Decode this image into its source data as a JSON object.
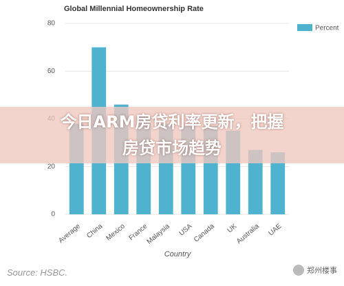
{
  "chart_data": {
    "type": "bar",
    "title": "Global Millennial Homeownership Rate",
    "categories": [
      "Average",
      "China",
      "Mexico",
      "France",
      "Malaysia",
      "USA",
      "Canada",
      "UK",
      "Australia",
      "UAE"
    ],
    "series": [
      {
        "name": "Percent",
        "color": "#4fb3cf",
        "values": [
          38,
          70,
          46,
          41,
          38,
          37,
          37,
          35,
          27,
          26
        ]
      }
    ],
    "xlabel": "Country",
    "ylim": [
      0,
      80
    ],
    "yticks": [
      0,
      20,
      40,
      60,
      80
    ],
    "grid": true,
    "legend": "top-right"
  },
  "overlay": {
    "line1": "今日ARM房贷利率更新，把握",
    "line2": "房贷市场趋势"
  },
  "source": "Source: HSBC.",
  "watermark": "郑州楼事"
}
